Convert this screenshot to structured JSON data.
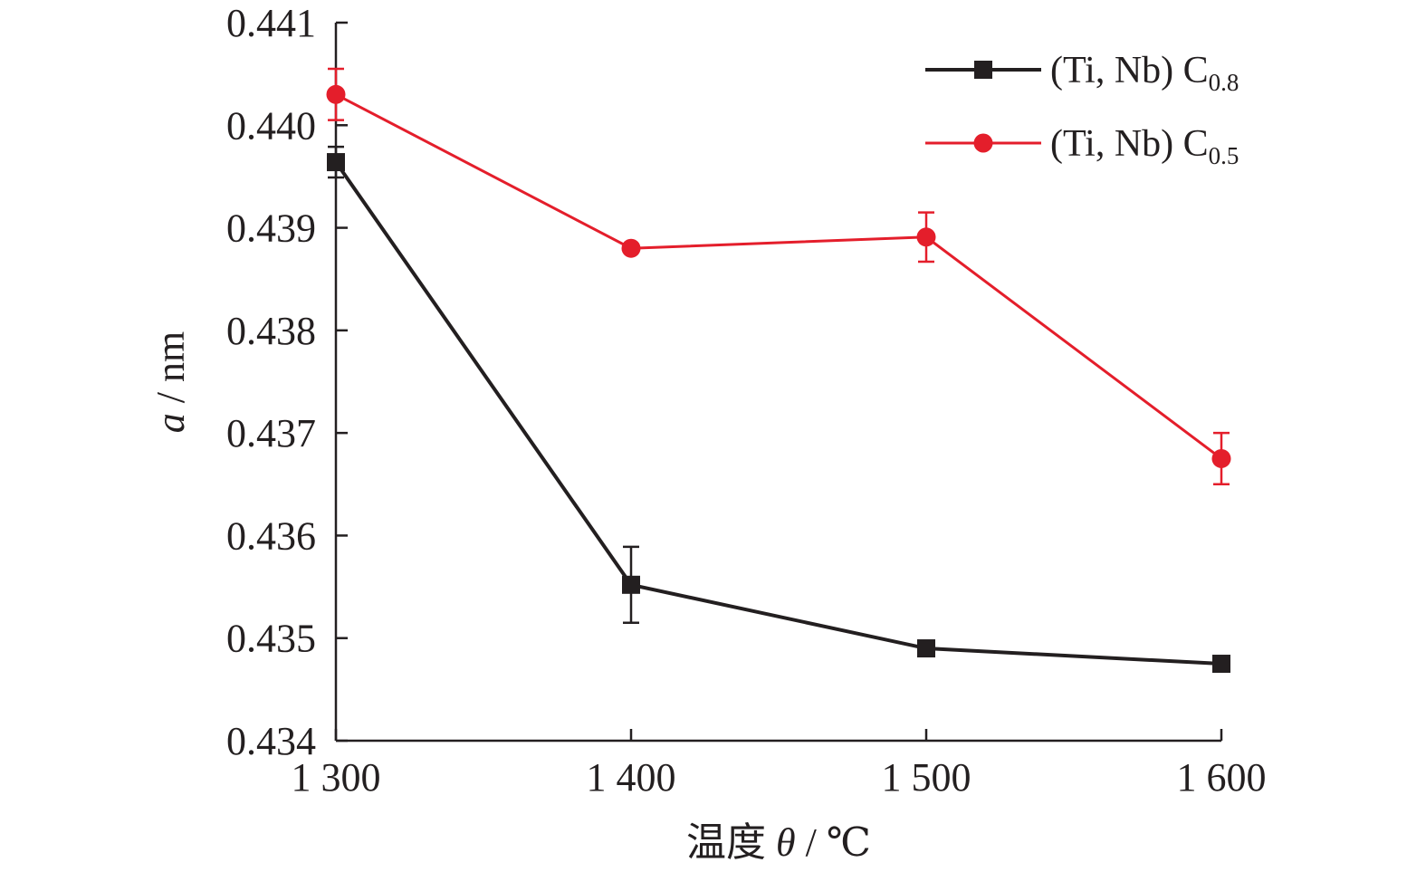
{
  "chart_data": {
    "type": "line",
    "title": "",
    "xlabel": {
      "prefix": "温度 ",
      "symbol": "θ",
      "suffix": " / ℃"
    },
    "ylabel": {
      "symbol": "a",
      "suffix": " / nm"
    },
    "x": [
      1300,
      1400,
      1500,
      1600
    ],
    "x_tick_labels": [
      "1 300",
      "1 400",
      "1 500",
      "1 600"
    ],
    "xlim": [
      1300,
      1600
    ],
    "y_ticks": [
      0.434,
      0.435,
      0.436,
      0.437,
      0.438,
      0.439,
      0.44,
      0.441
    ],
    "y_tick_labels": [
      "0.434",
      "0.435",
      "0.436",
      "0.437",
      "0.438",
      "0.439",
      "0.440",
      "0.441"
    ],
    "ylim": [
      0.434,
      0.441
    ],
    "grid": false,
    "legend_position": "top-right",
    "series": [
      {
        "name": "(Ti, Nb) C",
        "name_subscript": "0.8",
        "color": "#231f20",
        "marker": "square",
        "values": [
          0.43964,
          0.43552,
          0.4349,
          0.43475
        ],
        "error": [
          0.00015,
          0.00037,
          0.0,
          0.0
        ]
      },
      {
        "name": "(Ti, Nb) C",
        "name_subscript": "0.5",
        "color": "#e41e2b",
        "marker": "circle",
        "values": [
          0.4403,
          0.4388,
          0.43891,
          0.43675
        ],
        "error": [
          0.00025,
          0.0,
          0.00024,
          0.00025
        ]
      }
    ]
  }
}
